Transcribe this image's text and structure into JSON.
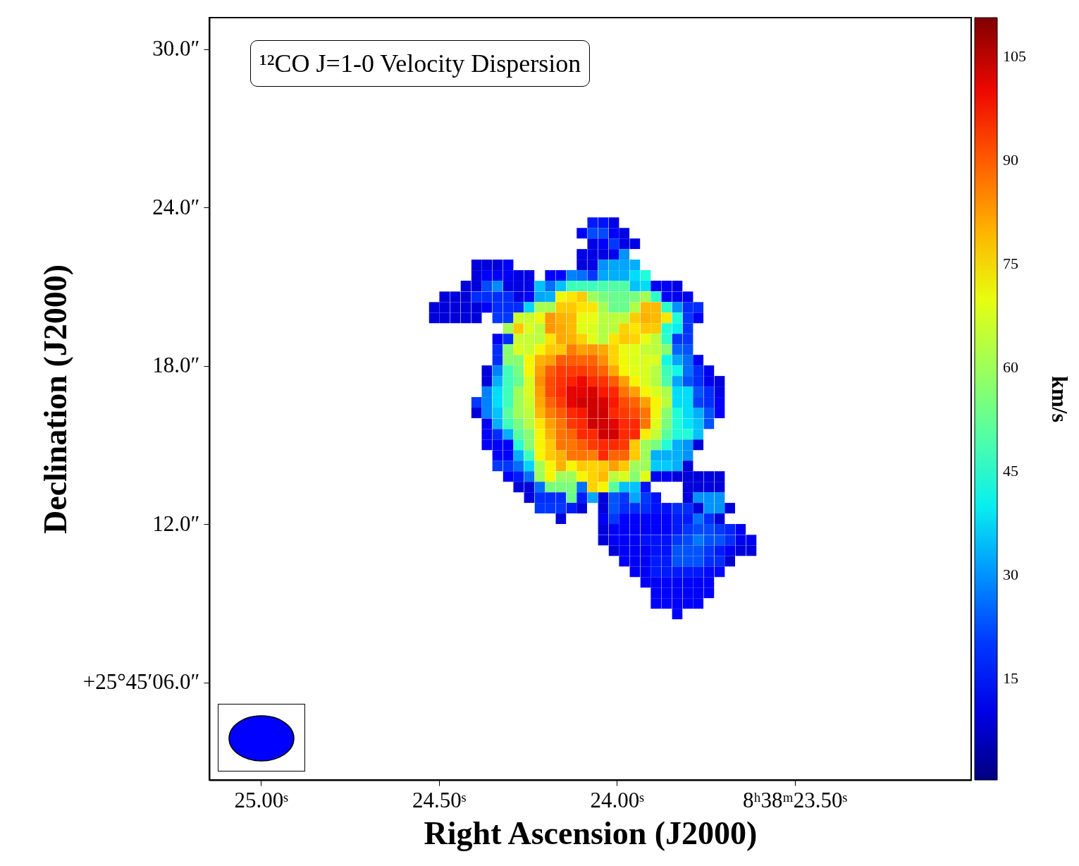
{
  "chart_data": {
    "type": "heatmap",
    "title": "¹²CO J=1-0 Velocity Dispersion",
    "xlabel": "Right Ascension (J2000)",
    "ylabel": "Declination (J2000)",
    "clabel": "km/s",
    "x": [
      24.513,
      24.484,
      24.454,
      24.424,
      24.394,
      24.365,
      24.335,
      24.305,
      24.276,
      24.246,
      24.216,
      24.187,
      24.157,
      24.127,
      24.098,
      24.068,
      24.038,
      24.008,
      23.979,
      23.949,
      23.919,
      23.89,
      23.86,
      23.83,
      23.8,
      23.771,
      23.741,
      23.711,
      23.682,
      23.652,
      23.622
    ],
    "y": [
      23.43,
      23.03,
      22.63,
      22.23,
      21.83,
      21.43,
      21.03,
      20.62,
      20.22,
      19.82,
      19.42,
      19.02,
      18.62,
      18.22,
      17.82,
      17.42,
      17.02,
      16.62,
      16.22,
      15.81,
      15.41,
      15.01,
      14.61,
      14.21,
      13.81,
      13.41,
      13.01,
      12.61,
      12.21,
      11.81,
      11.4,
      11.0,
      10.6,
      10.2,
      9.8,
      9.4,
      9.0,
      8.6
    ],
    "xlim": [
      25.145,
      23.004
    ],
    "ylim": [
      2.31,
      31.2
    ],
    "xticks": [
      {
        "value": 25,
        "label": "25.00ˢ"
      },
      {
        "value": 24.5,
        "label": "24.50ˢ"
      },
      {
        "value": 24,
        "label": "24.00ˢ"
      },
      {
        "value": 23.5,
        "label": "8ʰ38ᵐ23.50ˢ"
      }
    ],
    "yticks": [
      {
        "value": 30,
        "label": "30.0″"
      },
      {
        "value": 24,
        "label": "24.0″"
      },
      {
        "value": 18,
        "label": "18.0″"
      },
      {
        "value": 12,
        "label": "12.0″"
      },
      {
        "value": 6,
        "label": "+25°45′06.0″"
      }
    ],
    "clim": [
      0.3,
      110.6
    ],
    "cticks": [
      15,
      30,
      45,
      60,
      75,
      90,
      105
    ],
    "cells": [
      [
        null,
        null,
        null,
        null,
        null,
        null,
        null,
        null,
        null,
        null,
        null,
        null,
        null,
        null,
        null,
        17,
        16,
        10,
        null,
        null,
        null,
        null,
        null,
        null,
        null,
        null,
        null,
        null,
        null,
        null,
        null
      ],
      [
        null,
        null,
        null,
        null,
        null,
        null,
        null,
        null,
        null,
        null,
        null,
        null,
        null,
        null,
        14,
        22,
        22,
        13,
        10,
        null,
        null,
        null,
        null,
        null,
        null,
        null,
        null,
        null,
        null,
        null,
        null
      ],
      [
        null,
        null,
        null,
        null,
        null,
        null,
        null,
        null,
        null,
        null,
        null,
        null,
        null,
        null,
        null,
        10,
        14,
        20,
        10,
        10,
        null,
        null,
        null,
        null,
        null,
        null,
        null,
        null,
        null,
        null,
        null
      ],
      [
        null,
        null,
        null,
        null,
        null,
        null,
        null,
        null,
        null,
        null,
        null,
        null,
        null,
        null,
        10,
        10,
        10,
        11,
        30,
        null,
        null,
        null,
        null,
        null,
        null,
        null,
        null,
        null,
        null,
        null,
        null
      ],
      [
        null,
        null,
        null,
        null,
        9,
        9,
        9,
        13,
        null,
        null,
        null,
        null,
        null,
        null,
        9,
        10,
        30,
        32,
        32,
        33,
        null,
        null,
        null,
        null,
        null,
        null,
        null,
        null,
        null,
        null,
        null
      ],
      [
        null,
        null,
        null,
        null,
        9,
        13,
        13,
        13,
        10,
        10,
        null,
        14,
        14,
        28,
        26,
        20,
        32,
        33,
        33,
        38,
        43,
        null,
        null,
        null,
        null,
        null,
        null,
        null,
        null,
        null,
        null
      ],
      [
        null,
        null,
        null,
        9,
        9,
        22,
        29,
        10,
        10,
        10,
        35,
        26,
        35,
        47,
        47,
        47,
        49,
        50,
        50,
        35,
        38,
        13,
        13,
        10,
        null,
        null,
        null,
        null,
        null,
        null,
        null
      ],
      [
        null,
        9,
        9,
        9,
        19,
        19,
        19,
        19,
        10,
        12,
        32,
        33,
        71,
        74,
        77,
        60,
        55,
        53,
        53,
        55,
        61,
        45,
        13,
        11,
        11,
        null,
        null,
        null,
        null,
        null,
        null
      ],
      [
        9,
        9,
        9,
        9,
        9,
        14,
        19,
        19,
        19,
        37,
        61,
        61,
        77,
        77,
        74,
        74,
        61,
        53,
        53,
        62,
        79,
        79,
        45,
        30,
        19,
        19,
        null,
        null,
        null,
        null,
        null
      ],
      [
        9,
        9,
        9,
        9,
        9,
        null,
        20,
        20,
        66,
        66,
        71,
        83,
        80,
        79,
        70,
        70,
        64,
        64,
        64,
        77,
        80,
        79,
        74,
        43,
        20,
        12,
        null,
        null,
        null,
        null,
        null
      ],
      [
        null,
        null,
        null,
        null,
        null,
        null,
        null,
        61,
        77,
        68,
        64,
        83,
        81,
        79,
        69,
        68,
        63,
        64,
        76,
        74,
        77,
        77,
        43,
        40,
        20,
        null,
        null,
        null,
        null,
        null,
        null
      ],
      [
        null,
        null,
        null,
        null,
        null,
        null,
        12,
        19,
        66,
        65,
        64,
        74,
        81,
        80,
        76,
        69,
        63,
        74,
        77,
        76,
        70,
        64,
        45,
        20,
        20,
        null,
        null,
        null,
        null,
        null,
        null
      ],
      [
        null,
        null,
        null,
        null,
        null,
        null,
        19,
        57,
        68,
        66,
        72,
        77,
        77,
        86,
        82,
        83,
        81,
        76,
        70,
        69,
        65,
        64,
        57,
        25,
        23,
        null,
        null,
        null,
        null,
        null,
        null
      ],
      [
        null,
        null,
        null,
        null,
        null,
        null,
        19,
        57,
        57,
        72,
        80,
        82,
        90,
        90,
        89,
        89,
        84,
        76,
        71,
        68,
        68,
        68,
        41,
        32,
        26,
        12,
        null,
        null,
        null,
        null,
        null
      ],
      [
        null,
        null,
        null,
        null,
        null,
        9,
        28,
        47,
        55,
        72,
        82,
        90,
        94,
        94,
        94,
        92,
        89,
        81,
        72,
        69,
        68,
        63,
        47,
        41,
        26,
        19,
        11,
        null,
        null,
        null,
        null
      ],
      [
        null,
        null,
        null,
        null,
        null,
        9,
        33,
        47,
        53,
        68,
        84,
        92,
        95,
        97,
        100,
        96,
        95,
        90,
        82,
        72,
        68,
        63,
        49,
        32,
        23,
        19,
        11,
        9,
        null,
        null,
        null
      ],
      [
        null,
        null,
        null,
        null,
        null,
        28,
        38,
        47,
        60,
        68,
        82,
        92,
        96,
        101,
        101,
        102,
        98,
        96,
        87,
        82,
        72,
        68,
        62,
        38,
        38,
        23,
        19,
        10,
        null,
        null,
        null
      ],
      [
        null,
        null,
        null,
        null,
        20,
        28,
        38,
        47,
        60,
        66,
        81,
        89,
        94,
        101,
        103,
        103,
        102,
        98,
        92,
        89,
        82,
        72,
        64,
        38,
        38,
        21,
        19,
        13,
        null,
        null,
        null
      ],
      [
        null,
        null,
        null,
        null,
        9,
        28,
        35,
        51,
        60,
        64,
        79,
        86,
        90,
        96,
        98,
        103,
        103,
        96,
        94,
        92,
        87,
        71,
        57,
        43,
        38,
        33,
        23,
        13,
        null,
        null,
        null
      ],
      [
        null,
        null,
        null,
        null,
        null,
        13,
        33,
        47,
        55,
        63,
        74,
        82,
        87,
        94,
        96,
        103,
        103,
        101,
        96,
        96,
        87,
        69,
        55,
        43,
        39,
        35,
        23,
        null,
        null,
        null,
        null
      ],
      [
        null,
        null,
        null,
        null,
        null,
        13,
        19,
        33,
        51,
        57,
        72,
        80,
        87,
        89,
        96,
        96,
        103,
        103,
        96,
        96,
        73,
        65,
        51,
        43,
        43,
        35,
        null,
        null,
        null,
        null,
        null
      ],
      [
        null,
        null,
        null,
        null,
        null,
        13,
        14,
        14,
        44,
        57,
        72,
        77,
        87,
        87,
        90,
        94,
        96,
        96,
        94,
        77,
        60,
        55,
        43,
        33,
        30,
        9,
        null,
        null,
        null,
        null,
        null
      ],
      [
        null,
        null,
        null,
        null,
        null,
        null,
        14,
        14,
        33,
        47,
        72,
        77,
        80,
        87,
        87,
        86,
        96,
        89,
        89,
        77,
        60,
        33,
        33,
        33,
        30,
        null,
        null,
        null,
        null,
        null,
        null
      ],
      [
        null,
        null,
        null,
        null,
        null,
        null,
        20,
        20,
        26,
        37,
        61,
        72,
        80,
        72,
        77,
        76,
        77,
        82,
        77,
        60,
        60,
        36,
        36,
        33,
        9,
        null,
        null,
        null,
        null,
        null,
        null
      ],
      [
        null,
        null,
        null,
        null,
        null,
        null,
        null,
        14,
        17,
        26,
        60,
        72,
        60,
        60,
        72,
        76,
        79,
        64,
        68,
        57,
        69,
        11,
        11,
        9,
        9,
        9,
        9,
        9,
        null,
        null,
        null
      ],
      [
        null,
        null,
        null,
        null,
        null,
        null,
        null,
        null,
        9,
        9,
        26,
        55,
        55,
        55,
        26,
        76,
        72,
        51,
        35,
        35,
        16,
        null,
        null,
        null,
        9,
        9,
        9,
        9,
        null,
        null,
        null
      ],
      [
        null,
        null,
        null,
        null,
        null,
        null,
        null,
        null,
        null,
        9,
        19,
        19,
        19,
        53,
        17,
        32,
        9,
        23,
        20,
        32,
        20,
        16,
        null,
        null,
        9,
        30,
        30,
        30,
        null,
        null,
        null
      ],
      [
        null,
        null,
        null,
        null,
        null,
        null,
        null,
        null,
        null,
        null,
        20,
        20,
        20,
        17,
        9,
        null,
        9,
        23,
        19,
        19,
        19,
        16,
        16,
        19,
        19,
        9,
        30,
        30,
        9,
        null,
        null
      ],
      [
        null,
        null,
        null,
        null,
        null,
        null,
        null,
        null,
        null,
        null,
        null,
        null,
        9,
        null,
        null,
        null,
        12,
        20,
        14,
        14,
        14,
        14,
        14,
        17,
        17,
        26,
        19,
        9,
        null,
        null,
        null
      ],
      [
        null,
        null,
        null,
        null,
        null,
        null,
        null,
        null,
        null,
        null,
        null,
        null,
        null,
        null,
        null,
        null,
        9,
        13,
        13,
        13,
        13,
        13,
        13,
        17,
        20,
        22,
        22,
        20,
        18,
        12,
        null
      ],
      [
        null,
        null,
        null,
        null,
        null,
        null,
        null,
        null,
        null,
        null,
        null,
        null,
        null,
        null,
        null,
        null,
        9,
        13,
        13,
        13,
        16,
        16,
        16,
        20,
        22,
        27,
        23,
        23,
        19,
        11,
        11
      ],
      [
        null,
        null,
        null,
        null,
        null,
        null,
        null,
        null,
        null,
        null,
        null,
        null,
        null,
        null,
        null,
        null,
        null,
        9,
        13,
        13,
        13,
        16,
        16,
        23,
        23,
        23,
        20,
        17,
        12,
        9,
        9
      ],
      [
        null,
        null,
        null,
        null,
        null,
        null,
        null,
        null,
        null,
        null,
        null,
        null,
        null,
        null,
        null,
        null,
        null,
        null,
        13,
        13,
        13,
        17,
        17,
        23,
        23,
        23,
        19,
        19,
        8,
        null,
        null
      ],
      [
        null,
        null,
        null,
        null,
        null,
        null,
        null,
        null,
        null,
        null,
        null,
        null,
        null,
        null,
        null,
        null,
        null,
        null,
        null,
        13,
        13,
        17,
        17,
        17,
        17,
        17,
        15,
        15,
        null,
        null,
        null
      ],
      [
        null,
        null,
        null,
        null,
        null,
        null,
        null,
        null,
        null,
        null,
        null,
        null,
        null,
        null,
        null,
        null,
        null,
        null,
        null,
        null,
        13,
        14,
        14,
        14,
        14,
        14,
        14,
        null,
        null,
        null,
        null
      ],
      [
        null,
        null,
        null,
        null,
        null,
        null,
        null,
        null,
        null,
        null,
        null,
        null,
        null,
        null,
        null,
        null,
        null,
        null,
        null,
        null,
        null,
        14,
        14,
        14,
        14,
        14,
        14,
        null,
        null,
        null,
        null
      ],
      [
        null,
        null,
        null,
        null,
        null,
        null,
        null,
        null,
        null,
        null,
        null,
        null,
        null,
        null,
        null,
        null,
        null,
        null,
        null,
        null,
        null,
        14,
        14,
        14,
        14,
        14,
        null,
        null,
        null,
        null,
        null
      ],
      [
        null,
        null,
        null,
        null,
        null,
        null,
        null,
        null,
        null,
        null,
        null,
        null,
        null,
        null,
        null,
        null,
        null,
        null,
        null,
        null,
        null,
        null,
        null,
        13,
        null,
        null,
        null,
        null,
        null,
        null,
        null
      ]
    ]
  }
}
